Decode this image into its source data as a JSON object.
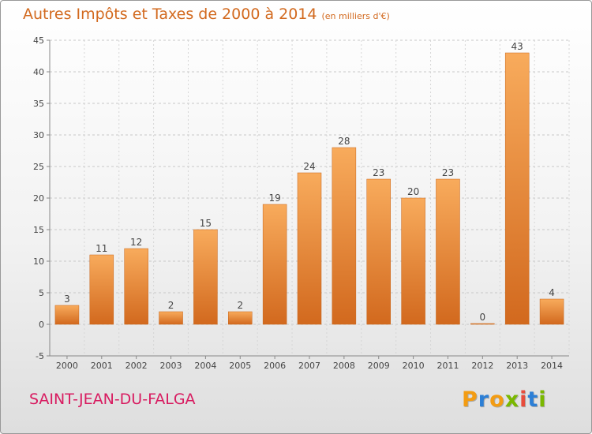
{
  "header": {
    "title": "Autres Impôts et Taxes de 2000 à 2014",
    "subtitle": "(en milliers d'€)"
  },
  "footer": {
    "commune": "SAINT-JEAN-DU-FALGA"
  },
  "logo": {
    "text": "Proxiti",
    "letter_colors": [
      "#f39c12",
      "#2c7fd6",
      "#f39c12",
      "#7ab800",
      "#e74c3c",
      "#2c7fd6",
      "#7ab800"
    ]
  },
  "chart_data": {
    "type": "bar",
    "title": "Autres Impôts et Taxes de 2000 à 2014",
    "subtitle": "(en milliers d'€)",
    "categories": [
      "2000",
      "2001",
      "2002",
      "2003",
      "2004",
      "2005",
      "2006",
      "2007",
      "2008",
      "2009",
      "2010",
      "2011",
      "2012",
      "2013",
      "2014"
    ],
    "values": [
      3,
      11,
      12,
      2,
      15,
      2,
      19,
      24,
      28,
      23,
      20,
      23,
      0,
      43,
      4
    ],
    "ylim": [
      -5,
      45
    ],
    "yticks": [
      -5,
      0,
      5,
      10,
      15,
      20,
      25,
      30,
      35,
      40,
      45
    ],
    "grid": "horizontal dashed",
    "bar_color": "#f0a050",
    "bar_color_dark": "#d2691e"
  }
}
